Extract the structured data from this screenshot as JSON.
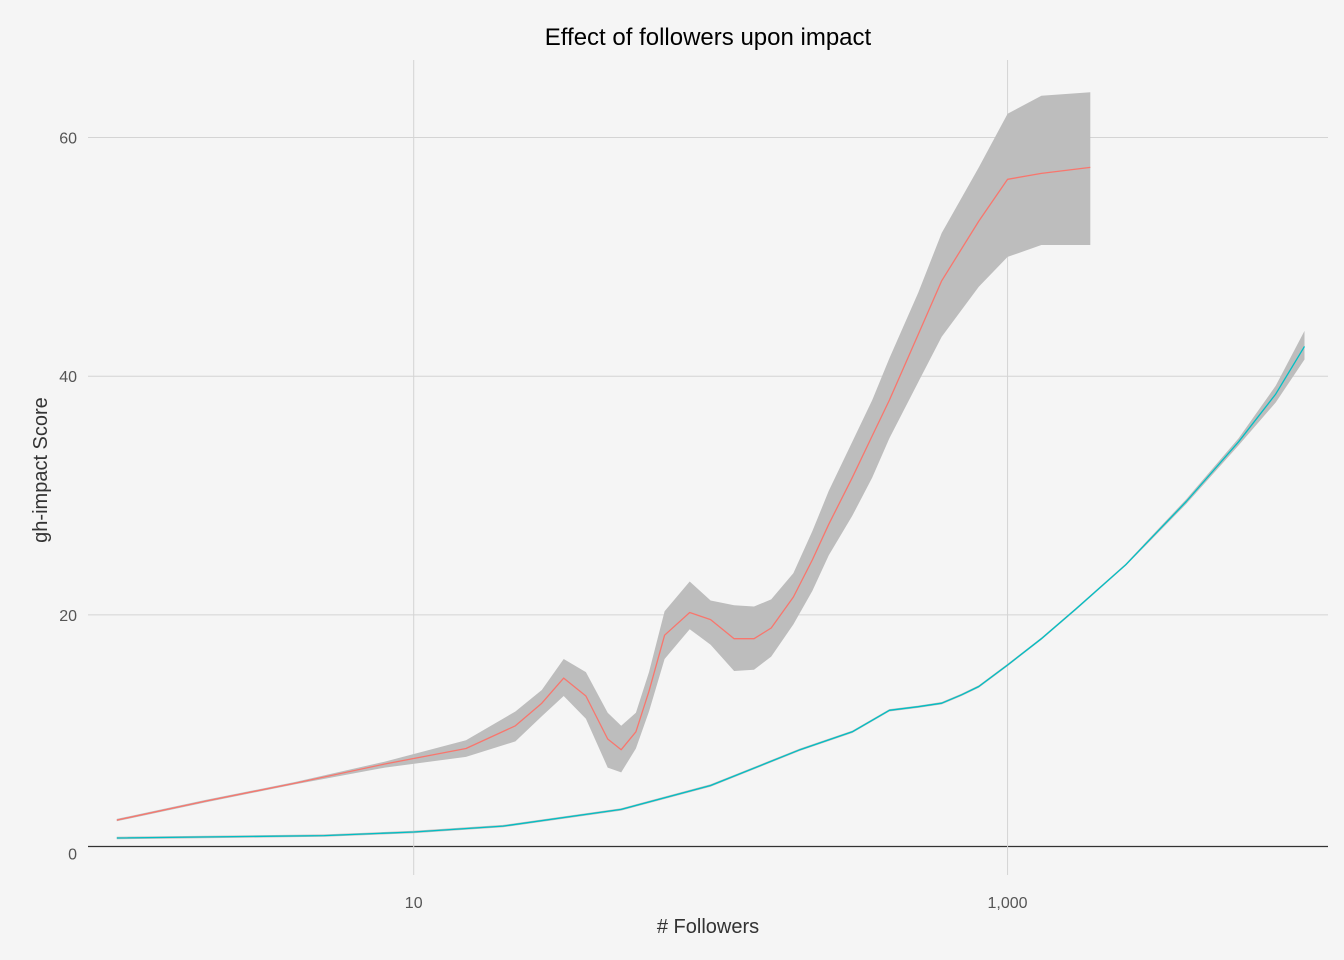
{
  "chart_data": {
    "type": "line",
    "title": "Effect of followers upon impact",
    "xlabel": "# Followers",
    "ylabel": "gh-impact Score",
    "x_scale": "log10",
    "xlim": [
      0.8,
      12000
    ],
    "ylim": [
      -1.8,
      66.5
    ],
    "x_ticks": [
      {
        "value": 10,
        "label": "10"
      },
      {
        "value": 1000,
        "label": "1,000"
      }
    ],
    "y_ticks": [
      {
        "value": 0,
        "label": "0"
      },
      {
        "value": 20,
        "label": "20"
      },
      {
        "value": 40,
        "label": "40"
      },
      {
        "value": 60,
        "label": "60"
      }
    ],
    "grid": true,
    "legend": "none",
    "series": [
      {
        "color": "#f8766d",
        "band_color": "#bdbdbd",
        "x": [
          1,
          2,
          4,
          8,
          15,
          22,
          27,
          32,
          38,
          45,
          50,
          56,
          62,
          70,
          85,
          100,
          120,
          140,
          160,
          190,
          220,
          250,
          300,
          350,
          400,
          500,
          600,
          800,
          1000,
          1300,
          1900
        ],
        "y": [
          2.8,
          4.4,
          5.9,
          7.5,
          8.8,
          10.7,
          12.6,
          14.7,
          13.2,
          9.6,
          8.7,
          10.2,
          13.6,
          18.3,
          20.2,
          19.6,
          18.0,
          18.0,
          18.9,
          21.5,
          24.6,
          27.6,
          31.5,
          35.0,
          38.0,
          43.5,
          48.0,
          53.0,
          56.5,
          57.0,
          57.5
        ],
        "lower": [
          2.7,
          4.3,
          5.8,
          7.2,
          8.1,
          9.4,
          11.5,
          13.2,
          11.3,
          7.2,
          6.8,
          8.8,
          11.9,
          16.3,
          18.8,
          17.5,
          15.3,
          15.4,
          16.5,
          19.2,
          22.0,
          25.0,
          28.3,
          31.5,
          34.8,
          39.5,
          43.3,
          47.5,
          50.0,
          51.0,
          51.0
        ],
        "upper": [
          2.9,
          4.5,
          6.0,
          7.7,
          9.5,
          11.9,
          13.7,
          16.3,
          15.2,
          11.8,
          10.7,
          11.8,
          15.2,
          20.3,
          22.8,
          21.2,
          20.8,
          20.7,
          21.3,
          23.5,
          27.0,
          30.4,
          34.5,
          38.0,
          41.5,
          47.0,
          52.0,
          57.5,
          62.0,
          63.5,
          63.8
        ]
      },
      {
        "color": "#00bfc4",
        "band_color": "#bdbdbd",
        "x": [
          1,
          5,
          10,
          20,
          50,
          100,
          200,
          300,
          400,
          500,
          600,
          700,
          800,
          1000,
          1300,
          1700,
          2500,
          4000,
          6000,
          8000,
          10000
        ],
        "y": [
          1.3,
          1.5,
          1.8,
          2.3,
          3.7,
          5.7,
          8.7,
          10.2,
          12.0,
          12.3,
          12.6,
          13.3,
          14.0,
          15.8,
          18.0,
          20.5,
          24.2,
          29.5,
          34.5,
          38.5,
          42.5
        ],
        "lower": [
          1.2,
          1.4,
          1.7,
          2.2,
          3.6,
          5.6,
          8.6,
          10.1,
          11.9,
          12.2,
          12.5,
          13.2,
          13.9,
          15.7,
          17.9,
          20.4,
          24.1,
          29.3,
          34.2,
          37.8,
          41.4
        ],
        "upper": [
          1.4,
          1.6,
          1.9,
          2.4,
          3.8,
          5.8,
          8.8,
          10.3,
          12.1,
          12.4,
          12.7,
          13.4,
          14.1,
          15.9,
          18.1,
          20.6,
          24.3,
          29.7,
          34.8,
          39.2,
          43.8
        ]
      }
    ]
  }
}
